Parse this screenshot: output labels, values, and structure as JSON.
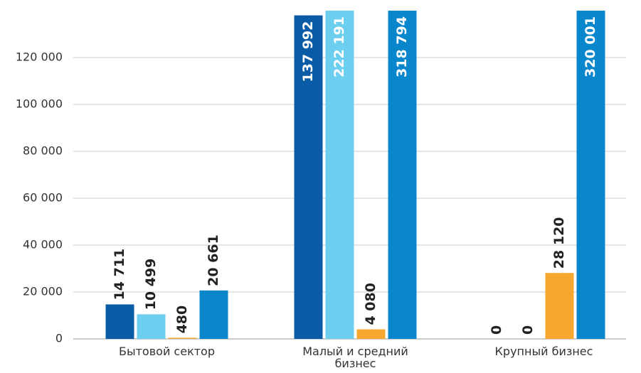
{
  "chart_data": {
    "type": "bar",
    "categories": [
      "Бытовой сектор",
      "Малый и средний бизнес",
      "Крупный бизнес"
    ],
    "series": [
      {
        "color": "#0a5ba6",
        "values": [
          14711,
          137992,
          0
        ],
        "value_labels": [
          "14 711",
          "137 992",
          "0"
        ]
      },
      {
        "color": "#6dcff0",
        "values": [
          10499,
          222191,
          0
        ],
        "value_labels": [
          "10 499",
          "222 191",
          "0"
        ]
      },
      {
        "color": "#f5a72f",
        "values": [
          480,
          4080,
          28120
        ],
        "value_labels": [
          "480",
          "4 080",
          "28 120"
        ]
      },
      {
        "color": "#0a87cc",
        "values": [
          20661,
          318794,
          320001
        ],
        "value_labels": [
          "20 661",
          "318 794",
          "320 001"
        ]
      }
    ],
    "ylim": [
      0,
      140000
    ],
    "yticks": [
      0,
      {
        "value": 20000,
        "label": "20 000"
      },
      {
        "value": 40000,
        "label": "40 000"
      },
      {
        "value": 60000,
        "label": "60 000"
      },
      {
        "value": 80000,
        "label": "80 000"
      },
      {
        "value": 100000,
        "label": "100 000"
      },
      {
        "value": 120000,
        "label": "120 000"
      }
    ],
    "grid": true
  }
}
